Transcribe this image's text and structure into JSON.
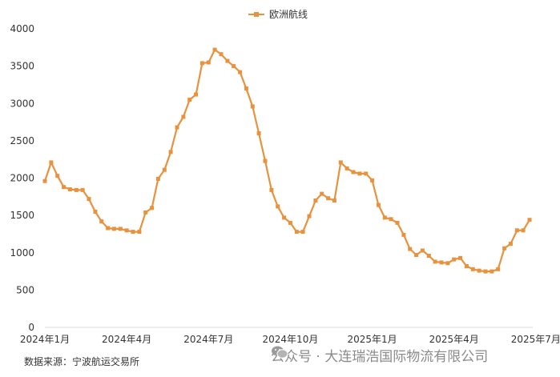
{
  "chart_data": {
    "type": "line",
    "title": "",
    "xlabel": "",
    "ylabel": "",
    "ylim": [
      0,
      4000
    ],
    "y_ticks": [
      "0",
      "500",
      "1000",
      "1500",
      "2000",
      "2500",
      "3000",
      "3500",
      "4000"
    ],
    "x_tick_labels": [
      "2024年1月",
      "2024年4月",
      "2024年7月",
      "2024年10月",
      "2025年1月",
      "2025年4月",
      "2025年7月"
    ],
    "x_tick_index": [
      0,
      13,
      26,
      39,
      52,
      65,
      78
    ],
    "grid": false,
    "legend_position": "top-center",
    "series": [
      {
        "name": "欧洲航线",
        "color": "#e8923e",
        "marker": "square",
        "values": [
          1960,
          2210,
          2030,
          1880,
          1850,
          1840,
          1840,
          1720,
          1550,
          1420,
          1330,
          1320,
          1320,
          1300,
          1280,
          1280,
          1540,
          1600,
          1990,
          2110,
          2350,
          2680,
          2820,
          3050,
          3120,
          3540,
          3550,
          3720,
          3660,
          3570,
          3500,
          3420,
          3200,
          2960,
          2600,
          2230,
          1840,
          1620,
          1470,
          1400,
          1280,
          1280,
          1490,
          1700,
          1790,
          1730,
          1700,
          2210,
          2130,
          2080,
          2060,
          2060,
          1970,
          1640,
          1470,
          1450,
          1400,
          1240,
          1050,
          970,
          1030,
          960,
          880,
          870,
          860,
          910,
          930,
          820,
          780,
          760,
          750,
          750,
          780,
          1060,
          1120,
          1300,
          1300,
          1440
        ]
      }
    ]
  },
  "source_note": "数据来源：宁波航运交易所",
  "watermark": "公众号 · 大连瑞浩国际物流有限公司",
  "icons": {
    "watermark_icon": "wechat-icon"
  }
}
